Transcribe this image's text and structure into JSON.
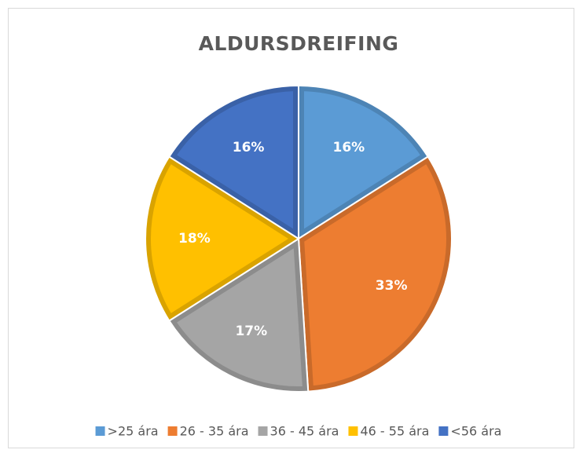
{
  "chart_data": {
    "type": "pie",
    "title": "ALDURSDREIFING",
    "categories": [
      ">25 ára",
      "26 - 35 ára",
      "36 - 45 ára",
      "46 - 55 ára",
      "<56 ára"
    ],
    "values": [
      16,
      33,
      17,
      18,
      16
    ],
    "value_labels": [
      "16%",
      "33%",
      "17%",
      "18%",
      "16%"
    ],
    "colors": [
      "#5b9bd5",
      "#ed7d31",
      "#a5a5a5",
      "#ffc000",
      "#4472c4"
    ],
    "legend": "bottom"
  }
}
